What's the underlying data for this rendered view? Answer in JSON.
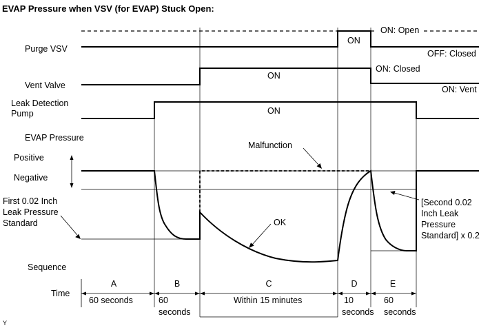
{
  "title": "EVAP Pressure when VSV (for EVAP) Stuck Open:",
  "left_labels": {
    "purge_vsv": "Purge VSV",
    "vent_valve": "Vent Valve",
    "ldp_line1": "Leak Detection",
    "ldp_line2": "Pump",
    "evap_pressure": "EVAP Pressure",
    "positive": "Positive",
    "negative": "Negative",
    "first_std_line1": "First 0.02 Inch",
    "first_std_line2": "Leak Pressure",
    "first_std_line3": "Standard",
    "sequence": "Sequence",
    "time": "Time"
  },
  "state_labels": {
    "purge_on": "ON",
    "on_open": "ON: Open",
    "off_closed": "OFF: Closed",
    "vent_on": "ON",
    "on_closed": "ON: Closed",
    "on_vent": "ON: Vent",
    "ldp_on": "ON"
  },
  "annotations": {
    "malfunction": "Malfunction",
    "ok": "OK",
    "second_std_line1": "[Second 0.02",
    "second_std_line2": "Inch Leak",
    "second_std_line3": "Pressure",
    "second_std_line4": "Standard] x 0.2"
  },
  "sequence": [
    {
      "letter": "A",
      "time_line1": "60 seconds",
      "time_line2": ""
    },
    {
      "letter": "B",
      "time_line1": "60",
      "time_line2": "seconds"
    },
    {
      "letter": "C",
      "time_line1": "Within 15 minutes",
      "time_line2": ""
    },
    {
      "letter": "D",
      "time_line1": "10",
      "time_line2": "seconds"
    },
    {
      "letter": "E",
      "time_line1": "60",
      "time_line2": "seconds"
    }
  ],
  "footer_mark": "Y"
}
